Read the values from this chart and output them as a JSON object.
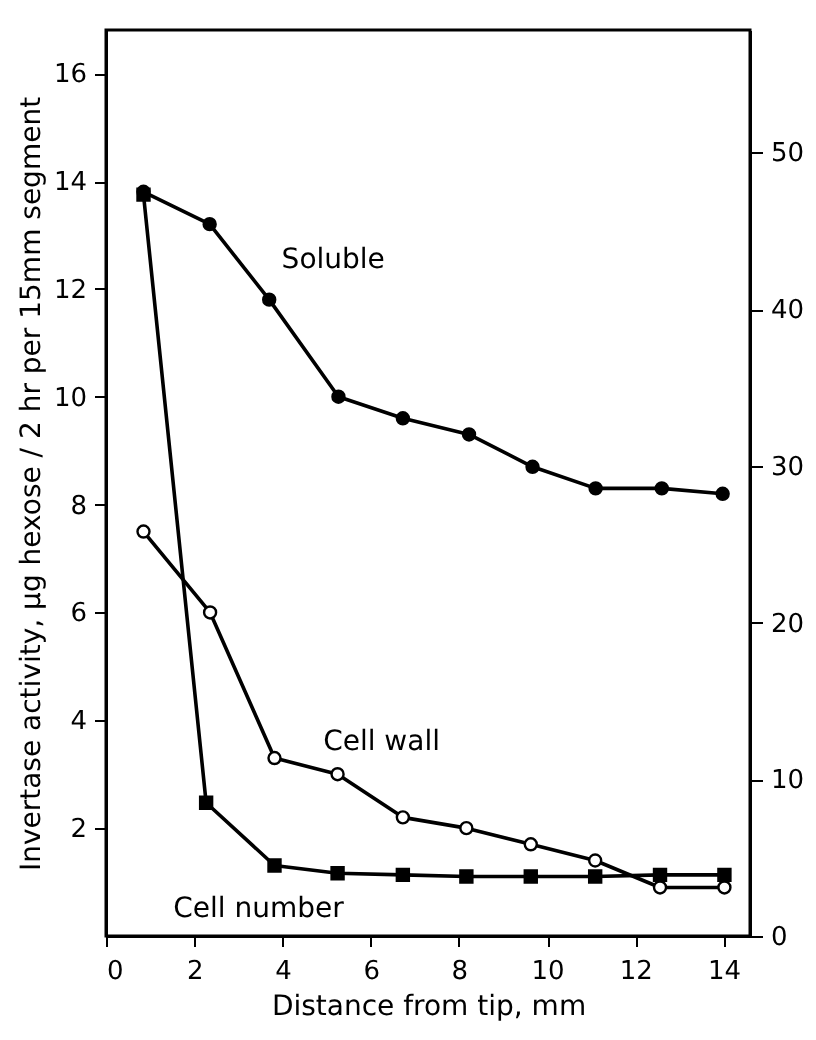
{
  "chart_data": {
    "type": "line",
    "xlabel": "Distance from tip,    mm",
    "ylabel": "Invertase activity,   μg hexose / 2 hr per 15mm segment",
    "xlim": [
      0,
      14.6
    ],
    "ylim": [
      0,
      16.8
    ],
    "y2lim": [
      0,
      57.8
    ],
    "xticks": [
      0,
      2,
      4,
      6,
      8,
      10,
      12,
      14
    ],
    "yticks": [
      2,
      4,
      6,
      8,
      10,
      12,
      14,
      16
    ],
    "y2ticks": [
      0,
      10,
      20,
      30,
      40,
      50
    ],
    "grid": false,
    "line_style": "solid",
    "series": [
      {
        "name": "Soluble",
        "color": "#000000",
        "marker": "circle",
        "x": [
          0.85,
          2.35,
          3.7,
          5.27,
          6.73,
          8.23,
          9.67,
          11.1,
          12.6,
          13.98
        ],
        "values": [
          13.8,
          13.2,
          11.8,
          10.0,
          9.6,
          9.3,
          8.7,
          8.3,
          8.3,
          8.2
        ]
      },
      {
        "name": "Cell wall",
        "color": "#000000",
        "marker": "circle-open",
        "x": [
          0.85,
          2.36,
          3.82,
          5.25,
          6.73,
          8.17,
          9.63,
          11.09,
          12.56,
          14.02
        ],
        "values": [
          7.5,
          6.0,
          3.3,
          3.0,
          2.2,
          2.0,
          1.7,
          1.4,
          0.9,
          0.9
        ]
      },
      {
        "name": "Cell number",
        "color": "#000000",
        "marker": "square",
        "axis": "y2",
        "x": [
          0.85,
          2.27,
          3.82,
          5.25,
          6.73,
          8.17,
          9.63,
          11.09,
          12.56,
          14.02
        ],
        "values": [
          47.3,
          8.5,
          4.5,
          4.0,
          3.9,
          3.8,
          3.8,
          3.8,
          3.9,
          3.9
        ]
      }
    ]
  }
}
